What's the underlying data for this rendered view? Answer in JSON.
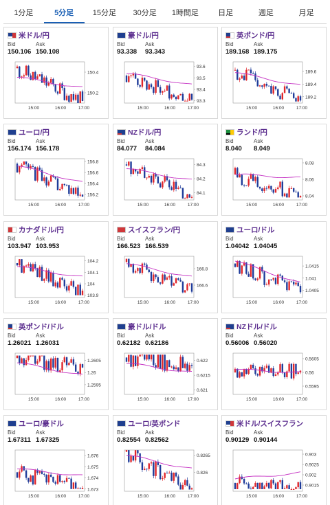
{
  "tabs": [
    {
      "label": "1分足",
      "active": false
    },
    {
      "label": "5分足",
      "active": true
    },
    {
      "label": "15分足",
      "active": false
    },
    {
      "label": "30分足",
      "active": false
    },
    {
      "label": "1時間足",
      "active": false
    },
    {
      "label": "日足",
      "active": false
    },
    {
      "label": "週足",
      "active": false
    },
    {
      "label": "月足",
      "active": false
    }
  ],
  "labels": {
    "bid": "Bid",
    "ask": "Ask"
  },
  "colors": {
    "up": "#e0262b",
    "down": "#1f3c9a",
    "ma": "#c42fc2",
    "pair_text": "#5b2d8e",
    "tab_active": "#1a5fb4"
  },
  "cards": [
    {
      "pair": "米ドル/円",
      "flag": "us",
      "bid": "150.106",
      "ask": "150.108",
      "chart_data": {
        "type": "candlestick",
        "x_ticks": [
          "15:00",
          "16:00",
          "17:00"
        ],
        "y_ticks": [
          150.2,
          150.4
        ],
        "ylim": [
          150.1,
          150.5
        ],
        "open": 150.44,
        "close": 150.12,
        "high": 150.47,
        "low": 150.1,
        "ma_start": 150.35,
        "ma_end": 150.25
      }
    },
    {
      "pair": "豪ドル/円",
      "flag": "au",
      "bid": "93.338",
      "ask": "93.343",
      "chart_data": {
        "type": "candlestick",
        "x_ticks": [
          "15:00",
          "16:00",
          "17:00"
        ],
        "y_ticks": [
          93.3,
          93.4,
          93.5,
          93.6
        ],
        "ylim": [
          93.28,
          93.64
        ],
        "open": 93.52,
        "close": 93.31,
        "high": 93.58,
        "low": 93.3,
        "ma_start": 93.54,
        "ma_end": 93.44
      }
    },
    {
      "pair": "英ポンド/円",
      "flag": "gb",
      "bid": "189.168",
      "ask": "189.175",
      "chart_data": {
        "type": "candlestick",
        "x_ticks": [
          "15:00",
          "16:00",
          "17:00"
        ],
        "y_ticks": [
          189.2,
          189.4,
          189.6
        ],
        "ylim": [
          189.1,
          189.75
        ],
        "open": 189.62,
        "close": 189.14,
        "high": 189.68,
        "low": 189.12,
        "ma_start": 189.58,
        "ma_end": 189.38
      }
    },
    {
      "pair": "ユーロ/円",
      "flag": "eu",
      "bid": "156.174",
      "ask": "156.178",
      "chart_data": {
        "type": "candlestick",
        "x_ticks": [
          "15:00",
          "16:00",
          "17:00"
        ],
        "y_ticks": [
          156.2,
          156.4,
          156.6,
          156.8
        ],
        "ylim": [
          156.1,
          156.85
        ],
        "open": 156.76,
        "close": 156.16,
        "high": 156.8,
        "low": 156.14,
        "ma_start": 156.72,
        "ma_end": 156.42
      }
    },
    {
      "pair": "NZドル/円",
      "flag": "nz",
      "bid": "84.077",
      "ask": "84.084",
      "chart_data": {
        "type": "candlestick",
        "x_ticks": [
          "15:00",
          "16:00",
          "17:00"
        ],
        "y_ticks": [
          84.1,
          84.2,
          84.3
        ],
        "ylim": [
          84.05,
          84.34
        ],
        "open": 84.3,
        "close": 84.07,
        "high": 84.32,
        "low": 84.06,
        "ma_start": 84.27,
        "ma_end": 84.19
      }
    },
    {
      "pair": "ランド/円",
      "flag": "za",
      "bid": "8.040",
      "ask": "8.049",
      "chart_data": {
        "type": "candlestick",
        "x_ticks": [
          "15:00",
          "16:00",
          "17:00"
        ],
        "y_ticks": [
          8.04,
          8.06,
          8.08
        ],
        "ylim": [
          8.035,
          8.085
        ],
        "open": 8.066,
        "close": 8.04,
        "high": 8.08,
        "low": 8.038,
        "ma_start": 8.066,
        "ma_end": 8.062
      }
    },
    {
      "pair": "カナダドル/円",
      "flag": "ca",
      "bid": "103.947",
      "ask": "103.953",
      "chart_data": {
        "type": "candlestick",
        "x_ticks": [
          "15:00",
          "16:00",
          "17:00"
        ],
        "y_ticks": [
          103.9,
          104,
          104.1,
          104.2
        ],
        "ylim": [
          103.88,
          104.24
        ],
        "open": 104.18,
        "close": 103.94,
        "high": 104.22,
        "low": 103.9,
        "ma_start": 104.15,
        "ma_end": 104.06
      }
    },
    {
      "pair": "スイスフラン/円",
      "flag": "ch",
      "bid": "166.523",
      "ask": "166.539",
      "chart_data": {
        "type": "candlestick",
        "x_ticks": [
          "15:00",
          "16:00",
          "17:00"
        ],
        "y_ticks": [
          166.6,
          166.8
        ],
        "ylim": [
          166.45,
          166.95
        ],
        "open": 166.88,
        "close": 166.52,
        "high": 166.92,
        "low": 166.5,
        "ma_start": 166.86,
        "ma_end": 166.7
      }
    },
    {
      "pair": "ユーロ/ドル",
      "flag": "eu-us",
      "bid": "1.04042",
      "ask": "1.04045",
      "chart_data": {
        "type": "candlestick",
        "x_ticks": [
          "15:00",
          "16:00",
          "17:00"
        ],
        "y_ticks": [
          1.0405,
          1.041,
          1.0415
        ],
        "ylim": [
          1.0402,
          1.0419
        ],
        "open": 1.0416,
        "close": 1.04042,
        "high": 1.0418,
        "low": 1.0403,
        "ma_start": 1.0417,
        "ma_end": 1.0408
      }
    },
    {
      "pair": "英ポンド/ドル",
      "flag": "gb-us",
      "bid": "1.26021",
      "ask": "1.26031",
      "chart_data": {
        "type": "candlestick",
        "x_ticks": [
          "15:00",
          "16:00",
          "17:00"
        ],
        "y_ticks": [
          1.2595,
          1.26,
          1.2605
        ],
        "ylim": [
          1.2591,
          1.2608
        ],
        "open": 1.2606,
        "close": 1.26021,
        "high": 1.2607,
        "low": 1.2592,
        "ma_start": 1.2604,
        "ma_end": 1.2599
      }
    },
    {
      "pair": "豪ドル/ドル",
      "flag": "au-us",
      "bid": "0.62182",
      "ask": "0.62186",
      "chart_data": {
        "type": "candlestick",
        "x_ticks": [
          "15:00",
          "16:00",
          "17:00"
        ],
        "y_ticks": [
          0.621,
          0.6215,
          0.622
        ],
        "ylim": [
          0.62085,
          0.62225
        ],
        "open": 0.6221,
        "close": 0.62182,
        "high": 0.6222,
        "low": 0.6209,
        "ma_start": 0.6219,
        "ma_end": 0.6216
      }
    },
    {
      "pair": "NZドル/ドル",
      "flag": "nz-us",
      "bid": "0.56006",
      "ask": "0.56020",
      "chart_data": {
        "type": "candlestick",
        "x_ticks": [
          "15:00",
          "16:00",
          "17:00"
        ],
        "y_ticks": [
          0.5595,
          0.56,
          0.5605
        ],
        "ylim": [
          0.5592,
          0.5607
        ],
        "open": 0.56,
        "close": 0.56006,
        "high": 0.5606,
        "low": 0.5594,
        "ma_start": 0.5601,
        "ma_end": 0.56
      }
    },
    {
      "pair": "ユーロ/豪ドル",
      "flag": "eu-au",
      "bid": "1.67311",
      "ask": "1.67325",
      "chart_data": {
        "type": "candlestick",
        "x_ticks": [
          "15:00",
          "16:00",
          "17:00"
        ],
        "y_ticks": [
          1.673,
          1.674,
          1.675,
          1.676
        ],
        "ylim": [
          1.6728,
          1.6765
        ],
        "open": 1.6745,
        "close": 1.67311,
        "high": 1.6762,
        "low": 1.673,
        "ma_start": 1.6748,
        "ma_end": 1.6742
      }
    },
    {
      "pair": "ユーロ/英ポンド",
      "flag": "eu-gb",
      "bid": "0.82554",
      "ask": "0.82562",
      "chart_data": {
        "type": "candlestick",
        "x_ticks": [
          "15:00",
          "16:00",
          "17:00"
        ],
        "y_ticks": [
          0.826,
          0.8265
        ],
        "ylim": [
          0.82545,
          0.82665
        ],
        "open": 0.8266,
        "close": 0.82554,
        "high": 0.82665,
        "low": 0.8255,
        "ma_start": 0.8265,
        "ma_end": 0.8261
      }
    },
    {
      "pair": "米ドル/スイスフラン",
      "flag": "us-ch",
      "bid": "0.90129",
      "ask": "0.90144",
      "chart_data": {
        "type": "candlestick",
        "x_ticks": [
          "15:00",
          "16:00",
          "17:00"
        ],
        "y_ticks": [
          0.9015,
          0.902,
          0.9025,
          0.903
        ],
        "ylim": [
          0.9012,
          0.9032
        ],
        "open": 0.9016,
        "close": 0.90129,
        "high": 0.903,
        "low": 0.9013,
        "ma_start": 0.9018,
        "ma_end": 0.9021
      }
    }
  ]
}
